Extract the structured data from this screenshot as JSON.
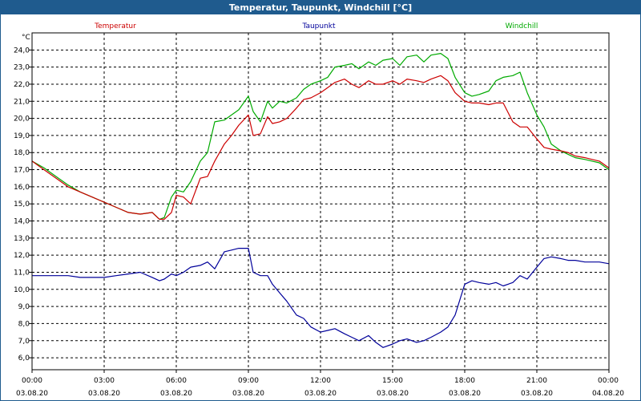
{
  "window": {
    "title": "Temperatur, Taupunkt, Windchill [°C]"
  },
  "chart_data": {
    "type": "line",
    "title": "Temperatur, Taupunkt, Windchill [°C]",
    "ylabel": "°C",
    "xlabel": "",
    "ylim": [
      5.3,
      25.0
    ],
    "xlim": [
      0,
      24
    ],
    "grid": true,
    "y_ticks": [
      "6,0",
      "7,0",
      "8,0",
      "9,0",
      "10,0",
      "11,0",
      "12,0",
      "13,0",
      "14,0",
      "15,0",
      "16,0",
      "17,0",
      "18,0",
      "19,0",
      "20,0",
      "21,0",
      "22,0",
      "23,0",
      "24,0"
    ],
    "y_tick_values": [
      6,
      7,
      8,
      9,
      10,
      11,
      12,
      13,
      14,
      15,
      16,
      17,
      18,
      19,
      20,
      21,
      22,
      23,
      24
    ],
    "x_ticks": [
      {
        "value": 0,
        "time": "00:00",
        "date": "03.08.20"
      },
      {
        "value": 3,
        "time": "03:00",
        "date": "03.08.20"
      },
      {
        "value": 6,
        "time": "06:00",
        "date": "03.08.20"
      },
      {
        "value": 9,
        "time": "09:00",
        "date": "03.08.20"
      },
      {
        "value": 12,
        "time": "12:00",
        "date": "03.08.20"
      },
      {
        "value": 15,
        "time": "15:00",
        "date": "03.08.20"
      },
      {
        "value": 18,
        "time": "18:00",
        "date": "03.08.20"
      },
      {
        "value": 21,
        "time": "21:00",
        "date": "03.08.20"
      },
      {
        "value": 24,
        "time": "00:00",
        "date": "04.08.20"
      }
    ],
    "series": [
      {
        "name": "Temperatur",
        "color": "#cc0000",
        "x": [
          0,
          0.5,
          1,
          1.5,
          2,
          2.5,
          3,
          3.5,
          4,
          4.5,
          5,
          5.3,
          5.5,
          5.8,
          6,
          6.3,
          6.6,
          7,
          7.3,
          7.6,
          8,
          8.3,
          8.6,
          9,
          9.2,
          9.5,
          9.8,
          10,
          10.3,
          10.6,
          11,
          11.3,
          11.6,
          12,
          12.3,
          12.6,
          13,
          13.3,
          13.6,
          14,
          14.3,
          14.6,
          15,
          15.3,
          15.6,
          16,
          16.3,
          16.6,
          17,
          17.3,
          17.6,
          18,
          18.3,
          18.6,
          19,
          19.3,
          19.6,
          20,
          20.3,
          20.6,
          21,
          21.3,
          21.6,
          22,
          22.3,
          22.6,
          23,
          23.3,
          23.6,
          24
        ],
        "values": [
          17.5,
          17.0,
          16.5,
          16.0,
          15.7,
          15.4,
          15.1,
          14.8,
          14.5,
          14.4,
          14.5,
          14.1,
          14.1,
          14.5,
          15.5,
          15.4,
          15.0,
          16.5,
          16.6,
          17.5,
          18.5,
          19.0,
          19.6,
          20.2,
          19.0,
          19.1,
          20.1,
          19.7,
          19.8,
          20.0,
          20.6,
          21.1,
          21.2,
          21.5,
          21.8,
          22.1,
          22.3,
          22.0,
          21.8,
          22.2,
          22.0,
          22.0,
          22.2,
          22.0,
          22.3,
          22.2,
          22.1,
          22.3,
          22.5,
          22.2,
          21.5,
          21.0,
          20.9,
          20.9,
          20.8,
          20.9,
          20.9,
          19.8,
          19.5,
          19.5,
          18.8,
          18.3,
          18.2,
          18.1,
          18.0,
          17.8,
          17.7,
          17.6,
          17.5,
          17.1
        ]
      },
      {
        "name": "Taupunkt",
        "color": "#00009a",
        "x": [
          0,
          0.5,
          1,
          1.5,
          2,
          2.5,
          3,
          3.5,
          4,
          4.5,
          5,
          5.3,
          5.5,
          5.8,
          6,
          6.3,
          6.6,
          7,
          7.3,
          7.6,
          8,
          8.3,
          8.6,
          9,
          9.2,
          9.5,
          9.8,
          10,
          10.3,
          10.6,
          11,
          11.3,
          11.6,
          12,
          12.3,
          12.6,
          13,
          13.3,
          13.6,
          14,
          14.3,
          14.6,
          15,
          15.3,
          15.6,
          16,
          16.3,
          16.6,
          17,
          17.3,
          17.6,
          18,
          18.3,
          18.6,
          19,
          19.3,
          19.6,
          20,
          20.3,
          20.6,
          21,
          21.3,
          21.6,
          22,
          22.3,
          22.6,
          23,
          23.3,
          23.6,
          24
        ],
        "values": [
          10.8,
          10.8,
          10.8,
          10.8,
          10.7,
          10.7,
          10.7,
          10.8,
          10.9,
          11.0,
          10.7,
          10.5,
          10.6,
          10.9,
          10.8,
          11.0,
          11.3,
          11.4,
          11.6,
          11.2,
          12.2,
          12.3,
          12.4,
          12.4,
          11.0,
          10.8,
          10.8,
          10.3,
          9.8,
          9.3,
          8.5,
          8.3,
          7.8,
          7.5,
          7.6,
          7.7,
          7.4,
          7.2,
          7.0,
          7.3,
          6.9,
          6.6,
          6.8,
          7.0,
          7.1,
          6.9,
          7.0,
          7.2,
          7.5,
          7.8,
          8.5,
          10.3,
          10.5,
          10.4,
          10.3,
          10.4,
          10.2,
          10.4,
          10.8,
          10.6,
          11.3,
          11.8,
          11.9,
          11.8,
          11.7,
          11.7,
          11.6,
          11.6,
          11.6,
          11.5
        ]
      },
      {
        "name": "Windchill",
        "color": "#00aa00",
        "x": [
          0,
          0.5,
          1,
          1.5,
          2,
          2.5,
          3,
          3.5,
          4,
          4.5,
          5,
          5.3,
          5.5,
          5.8,
          6,
          6.3,
          6.6,
          7,
          7.3,
          7.6,
          8,
          8.3,
          8.6,
          9,
          9.2,
          9.5,
          9.8,
          10,
          10.3,
          10.6,
          11,
          11.3,
          11.6,
          12,
          12.3,
          12.6,
          13,
          13.3,
          13.6,
          14,
          14.3,
          14.6,
          15,
          15.3,
          15.6,
          16,
          16.3,
          16.6,
          17,
          17.3,
          17.6,
          18,
          18.3,
          18.6,
          19,
          19.3,
          19.6,
          20,
          20.3,
          20.6,
          21,
          21.3,
          21.6,
          22,
          22.3,
          22.6,
          23,
          23.3,
          23.6,
          24
        ],
        "values": [
          17.5,
          17.1,
          16.6,
          16.1,
          15.7,
          15.4,
          15.1,
          14.8,
          14.5,
          14.4,
          14.5,
          14.1,
          14.2,
          15.4,
          15.8,
          15.7,
          16.3,
          17.5,
          18.0,
          19.8,
          19.9,
          20.2,
          20.5,
          21.3,
          20.4,
          19.8,
          21.0,
          20.6,
          21.0,
          20.9,
          21.2,
          21.7,
          22.0,
          22.2,
          22.4,
          23.0,
          23.1,
          23.2,
          22.9,
          23.3,
          23.1,
          23.4,
          23.5,
          23.1,
          23.6,
          23.7,
          23.3,
          23.7,
          23.8,
          23.5,
          22.4,
          21.5,
          21.3,
          21.4,
          21.6,
          22.2,
          22.4,
          22.5,
          22.7,
          21.5,
          20.2,
          19.5,
          18.5,
          18.1,
          17.9,
          17.7,
          17.6,
          17.5,
          17.4,
          17.0
        ]
      }
    ]
  }
}
